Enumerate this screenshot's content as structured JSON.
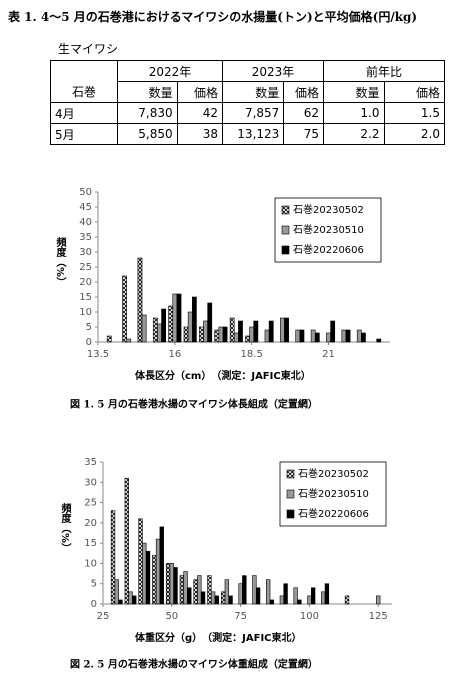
{
  "header": {
    "title": "表 1. 4～5 月の石巻港におけるマイワシの水揚量(トン)と平均価格(円/kg)"
  },
  "table": {
    "caption": "生マイワシ",
    "corner": "石巻",
    "groups": [
      "2022年",
      "2023年",
      "前年比"
    ],
    "columns": [
      "数量",
      "価格",
      "数量",
      "価格",
      "数量",
      "価格"
    ],
    "rows": [
      [
        "4月",
        "7,830",
        "42",
        "7,857",
        "62",
        "1.0",
        "1.5"
      ],
      [
        "5月",
        "5,850",
        "38",
        "13,123",
        "75",
        "2.2",
        "2.0"
      ]
    ]
  },
  "chart_data": [
    {
      "type": "bar",
      "caption": "図 1. 5 月の石巻港水揚のマイワシ体長組成（定置網）",
      "x_label": "体長区分（cm）　（測定：JAFIC東北）",
      "y_label": "頻度（%）",
      "x": [
        14.0,
        14.5,
        15.0,
        15.5,
        16.0,
        16.5,
        17.0,
        17.5,
        18.0,
        18.5,
        19.0,
        19.5,
        20.0,
        20.5,
        21.0,
        21.5,
        22.0,
        22.5
      ],
      "series": [
        {
          "name": "石巻20230502",
          "color": "#ffffff",
          "hatch": true,
          "values": [
            2,
            22,
            28,
            8,
            12,
            5,
            5,
            4,
            8,
            2,
            0,
            0,
            0,
            0,
            0,
            0,
            0,
            0
          ]
        },
        {
          "name": "石巻20230510",
          "color": "#999999",
          "values": [
            0,
            1,
            9,
            6,
            16,
            10,
            7,
            5,
            3,
            5,
            4,
            8,
            4,
            4,
            3,
            4,
            4,
            0
          ]
        },
        {
          "name": "石巻20220606",
          "color": "#000000",
          "values": [
            0,
            0,
            0,
            11,
            16,
            15,
            13,
            5,
            7,
            7,
            7,
            8,
            4,
            3,
            7,
            4,
            3,
            1
          ]
        }
      ],
      "xlim": [
        13.5,
        23
      ],
      "xticks": [
        13.5,
        16,
        18.5,
        21
      ],
      "ylim": [
        0,
        50
      ],
      "yticks": [
        0,
        5,
        10,
        15,
        20,
        25,
        30,
        35,
        40,
        45,
        50
      ],
      "legend": "upper right"
    },
    {
      "type": "bar",
      "caption": "図 2. 5 月の石巻港水揚のマイワシ体重組成（定置網）",
      "x_label": "体重区分（g）　（測定：JAFIC東北）",
      "y_label": "頻度（%）",
      "x": [
        30,
        35,
        40,
        45,
        50,
        55,
        60,
        65,
        70,
        75,
        80,
        85,
        90,
        95,
        100,
        105,
        110,
        115,
        120,
        125
      ],
      "series": [
        {
          "name": "石巻20230502",
          "color": "#ffffff",
          "hatch": true,
          "values": [
            23,
            31,
            21,
            12,
            10,
            7,
            6,
            7,
            3,
            0,
            0,
            0,
            0,
            0,
            0,
            0,
            0,
            2,
            0,
            0
          ]
        },
        {
          "name": "石巻20230510",
          "color": "#999999",
          "values": [
            6,
            3,
            15,
            16,
            10,
            8,
            7,
            3,
            6,
            5,
            7,
            6,
            2,
            4,
            2,
            3,
            0,
            0,
            0,
            2
          ]
        },
        {
          "name": "石巻20220606",
          "color": "#000000",
          "values": [
            1,
            2,
            13,
            19,
            9,
            4,
            3,
            2,
            2,
            7,
            4,
            1,
            5,
            1,
            4,
            5,
            0,
            0,
            0,
            0
          ]
        }
      ],
      "xlim": [
        25,
        130
      ],
      "xticks": [
        25,
        50,
        75,
        100,
        125
      ],
      "ylim": [
        0,
        35
      ],
      "yticks": [
        0,
        5,
        10,
        15,
        20,
        25,
        30,
        35
      ],
      "legend": "upper right"
    }
  ]
}
